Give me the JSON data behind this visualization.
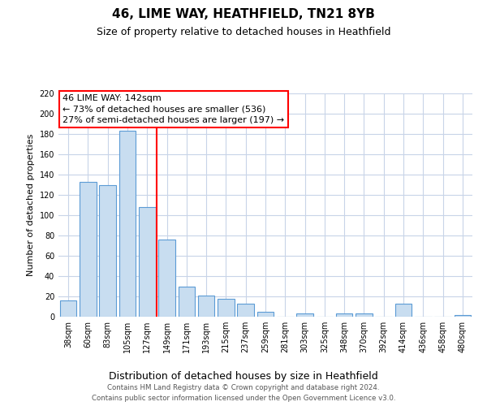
{
  "title": "46, LIME WAY, HEATHFIELD, TN21 8YB",
  "subtitle": "Size of property relative to detached houses in Heathfield",
  "xlabel": "Distribution of detached houses by size in Heathfield",
  "ylabel": "Number of detached properties",
  "categories": [
    "38sqm",
    "60sqm",
    "83sqm",
    "105sqm",
    "127sqm",
    "149sqm",
    "171sqm",
    "193sqm",
    "215sqm",
    "237sqm",
    "259sqm",
    "281sqm",
    "303sqm",
    "325sqm",
    "348sqm",
    "370sqm",
    "392sqm",
    "414sqm",
    "436sqm",
    "458sqm",
    "480sqm"
  ],
  "values": [
    16,
    133,
    130,
    183,
    108,
    76,
    30,
    21,
    18,
    13,
    5,
    0,
    3,
    0,
    3,
    3,
    0,
    13,
    0,
    0,
    2
  ],
  "bar_color": "#c8ddf0",
  "bar_edge_color": "#5b9bd5",
  "vline_index": 5,
  "vline_color": "red",
  "ylim": [
    0,
    220
  ],
  "yticks": [
    0,
    20,
    40,
    60,
    80,
    100,
    120,
    140,
    160,
    180,
    200,
    220
  ],
  "annotation_title": "46 LIME WAY: 142sqm",
  "annotation_line1": "← 73% of detached houses are smaller (536)",
  "annotation_line2": "27% of semi-detached houses are larger (197) →",
  "annotation_box_color": "white",
  "annotation_box_edge": "red",
  "footer_line1": "Contains HM Land Registry data © Crown copyright and database right 2024.",
  "footer_line2": "Contains public sector information licensed under the Open Government Licence v3.0.",
  "bg_color": "white",
  "grid_color": "#c8d4e8"
}
